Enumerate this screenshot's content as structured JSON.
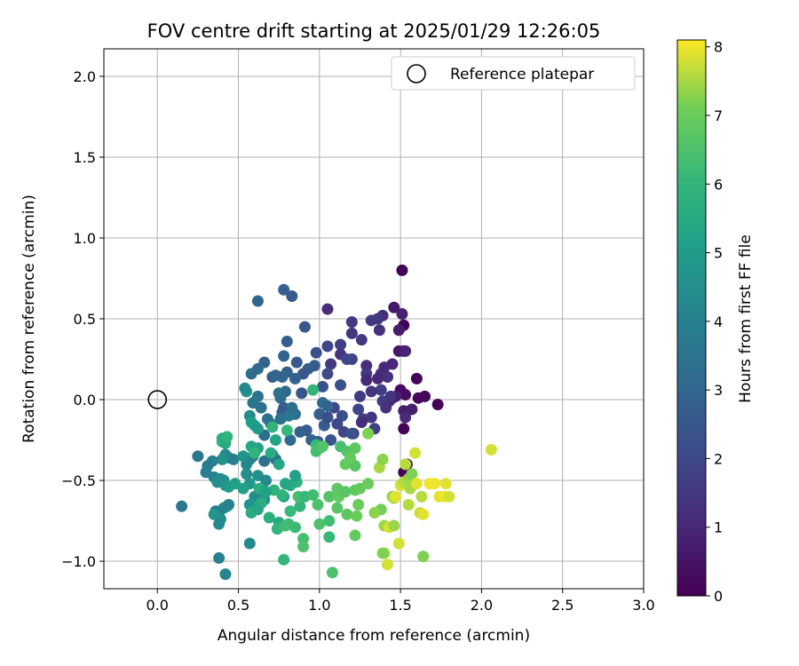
{
  "chart_data": {
    "type": "scatter",
    "title": "FOV centre drift starting at 2025/01/29 12:26:05",
    "xlabel": "Angular distance from reference (arcmin)",
    "ylabel": "Rotation from reference (arcmin)",
    "colorbar_label": "Hours from first FF file",
    "xlim": [
      -0.33,
      3.0
    ],
    "ylim": [
      -1.17,
      2.17
    ],
    "xticks": [
      0.0,
      0.5,
      1.0,
      1.5,
      2.0,
      2.5,
      3.0
    ],
    "xtick_labels": [
      "0.0",
      "0.5",
      "1.0",
      "1.5",
      "2.0",
      "2.5",
      "3.0"
    ],
    "yticks": [
      -1.0,
      -0.5,
      0.0,
      0.5,
      1.0,
      1.5,
      2.0
    ],
    "ytick_labels": [
      "−1.0",
      "−0.5",
      "0.0",
      "0.5",
      "1.0",
      "1.5",
      "2.0"
    ],
    "colorbar_range": [
      0,
      8.1
    ],
    "colorbar_ticks": [
      0,
      1,
      2,
      3,
      4,
      5,
      6,
      7,
      8
    ],
    "colorbar_tick_labels": [
      "0",
      "1",
      "2",
      "3",
      "4",
      "5",
      "6",
      "7",
      "8"
    ],
    "colormap": "viridis",
    "grid": true,
    "legend": {
      "position": "upper-right",
      "entries": [
        {
          "label": "Reference platepar",
          "marker": "open-circle"
        }
      ]
    },
    "reference_point": {
      "x": 0.0,
      "y": 0.0
    },
    "points": [
      [
        1.51,
        0.8,
        0.05
      ],
      [
        1.52,
        0.46,
        0.1
      ],
      [
        1.52,
        0.3,
        0.2
      ],
      [
        1.52,
        -0.18,
        0.05
      ],
      [
        1.6,
        0.13,
        0.1
      ],
      [
        1.61,
        0.01,
        0.15
      ],
      [
        1.65,
        0.02,
        0.2
      ],
      [
        1.73,
        -0.03,
        0.1
      ],
      [
        1.5,
        0.06,
        0.3
      ],
      [
        1.53,
        0.03,
        0.35
      ],
      [
        1.54,
        -0.4,
        0.5
      ],
      [
        1.52,
        -0.45,
        0.1
      ],
      [
        1.46,
        0.57,
        0.6
      ],
      [
        1.51,
        0.53,
        0.8
      ],
      [
        1.49,
        0.43,
        0.7
      ],
      [
        1.49,
        0.3,
        0.6
      ],
      [
        1.53,
        0.3,
        0.9
      ],
      [
        1.45,
        0.22,
        1.0
      ],
      [
        1.4,
        0.2,
        1.1
      ],
      [
        1.38,
        0.16,
        1.2
      ],
      [
        1.36,
        0.13,
        1.0
      ],
      [
        1.42,
        0.14,
        1.3
      ],
      [
        1.47,
        0.02,
        0.8
      ],
      [
        1.45,
        0.01,
        0.6
      ],
      [
        1.43,
        -0.01,
        0.9
      ],
      [
        1.52,
        -0.07,
        0.7
      ],
      [
        1.57,
        -0.06,
        0.8
      ],
      [
        1.53,
        -0.11,
        1.1
      ],
      [
        1.39,
        0.52,
        1.2
      ],
      [
        1.36,
        0.5,
        1.4
      ],
      [
        1.32,
        0.49,
        1.5
      ],
      [
        1.37,
        0.43,
        1.3
      ],
      [
        1.2,
        0.48,
        1.6
      ],
      [
        1.2,
        0.41,
        1.4
      ],
      [
        1.26,
        0.37,
        1.5
      ],
      [
        1.05,
        0.56,
        1.2
      ],
      [
        1.13,
        0.34,
        1.7
      ],
      [
        1.13,
        0.28,
        1.4
      ],
      [
        1.2,
        0.25,
        1.8
      ],
      [
        1.05,
        0.33,
        1.9
      ],
      [
        1.07,
        0.22,
        1.6
      ],
      [
        1.29,
        0.21,
        1.2
      ],
      [
        1.29,
        0.16,
        1.5
      ],
      [
        1.29,
        0.12,
        1.1
      ],
      [
        1.38,
        0.06,
        1.7
      ],
      [
        1.32,
        0.05,
        1.4
      ],
      [
        1.39,
        -0.01,
        1.6
      ],
      [
        1.44,
        0.02,
        1.4
      ],
      [
        1.41,
        -0.05,
        1.3
      ],
      [
        1.25,
        0.02,
        1.6
      ],
      [
        1.24,
        -0.06,
        1.9
      ],
      [
        1.27,
        -0.12,
        1.7
      ],
      [
        1.32,
        -0.11,
        1.5
      ],
      [
        1.34,
        -0.18,
        1.8
      ],
      [
        1.26,
        -0.14,
        1.2
      ],
      [
        1.14,
        -0.1,
        2.2
      ],
      [
        1.21,
        -0.21,
        1.6
      ],
      [
        1.09,
        -0.05,
        2.0
      ],
      [
        1.02,
        0.08,
        2.4
      ],
      [
        1.05,
        0.16,
        2.1
      ],
      [
        1.13,
        0.09,
        2.3
      ],
      [
        1.17,
        0.25,
        2.0
      ],
      [
        0.97,
        0.21,
        2.6
      ],
      [
        0.98,
        0.29,
        2.3
      ],
      [
        0.93,
        0.19,
        2.7
      ],
      [
        0.9,
        0.16,
        2.5
      ],
      [
        0.91,
        0.45,
        2.5
      ],
      [
        0.86,
        0.23,
        2.6
      ],
      [
        0.83,
        0.64,
        2.6
      ],
      [
        0.78,
        0.68,
        2.8
      ],
      [
        0.8,
        0.36,
        2.7
      ],
      [
        0.78,
        0.27,
        2.9
      ],
      [
        0.8,
        0.17,
        2.8
      ],
      [
        0.77,
        0.14,
        3.0
      ],
      [
        0.71,
        0.14,
        2.7
      ],
      [
        0.66,
        0.23,
        2.8
      ],
      [
        0.62,
        0.61,
        3.0
      ],
      [
        0.62,
        0.19,
        3.1
      ],
      [
        0.58,
        0.16,
        3.2
      ],
      [
        0.73,
        0.15,
        2.9
      ],
      [
        0.85,
        0.13,
        2.8
      ],
      [
        0.89,
        0.04,
        2.4
      ],
      [
        0.79,
        0.05,
        3.1
      ],
      [
        0.75,
        0.04,
        3.4
      ],
      [
        0.76,
        0.01,
        3.3
      ],
      [
        0.62,
        0.02,
        3.4
      ],
      [
        0.59,
        -0.02,
        3.6
      ],
      [
        0.64,
        -0.05,
        3.4
      ],
      [
        0.78,
        -0.05,
        2.9
      ],
      [
        0.77,
        -0.08,
        2.6
      ],
      [
        0.83,
        -0.05,
        3.2
      ],
      [
        0.85,
        -0.09,
        3.3
      ],
      [
        0.81,
        -0.1,
        3.6
      ],
      [
        0.76,
        -0.12,
        3.4
      ],
      [
        1.02,
        -0.02,
        3.1
      ],
      [
        1.05,
        -0.04,
        2.9
      ],
      [
        1.0,
        -0.09,
        2.7
      ],
      [
        1.03,
        -0.16,
        2.6
      ],
      [
        1.05,
        -0.11,
        2.2
      ],
      [
        1.11,
        -0.15,
        2.0
      ],
      [
        1.15,
        -0.2,
        1.9
      ],
      [
        1.2,
        -0.21,
        2.3
      ],
      [
        0.92,
        -0.19,
        2.6
      ],
      [
        0.88,
        -0.2,
        2.8
      ],
      [
        0.95,
        -0.25,
        2.9
      ],
      [
        0.99,
        -0.26,
        2.7
      ],
      [
        1.07,
        -0.25,
        2.4
      ],
      [
        0.82,
        -0.25,
        3.1
      ],
      [
        0.7,
        -0.15,
        3.3
      ],
      [
        0.68,
        -0.12,
        3.5
      ],
      [
        0.66,
        -0.22,
        3.3
      ],
      [
        0.71,
        -0.34,
        3.5
      ],
      [
        0.73,
        -0.37,
        3.4
      ],
      [
        0.66,
        -0.38,
        3.3
      ],
      [
        0.59,
        -0.35,
        3.7
      ],
      [
        0.57,
        -0.37,
        4.0
      ],
      [
        0.55,
        -0.4,
        4.2
      ],
      [
        0.47,
        -0.37,
        4.1
      ],
      [
        0.44,
        -0.36,
        3.8
      ],
      [
        0.55,
        0.05,
        4.7
      ],
      [
        0.54,
        0.07,
        4.3
      ],
      [
        0.57,
        -0.1,
        4.5
      ],
      [
        0.6,
        -0.16,
        5.3
      ],
      [
        0.58,
        -0.14,
        5.1
      ],
      [
        0.62,
        -0.18,
        4.9
      ],
      [
        0.73,
        -0.25,
        5.3
      ],
      [
        0.7,
        -0.33,
        5.6
      ],
      [
        0.75,
        -0.4,
        5.4
      ],
      [
        0.62,
        -0.3,
        5.2
      ],
      [
        0.58,
        -0.29,
        5.4
      ],
      [
        0.6,
        -0.33,
        5.9
      ],
      [
        0.53,
        -0.35,
        4.7
      ],
      [
        0.55,
        -0.46,
        4.5
      ],
      [
        0.57,
        -0.52,
        4.8
      ],
      [
        0.62,
        -0.47,
        4.6
      ],
      [
        0.67,
        -0.5,
        4.3
      ],
      [
        0.66,
        -0.62,
        4.7
      ],
      [
        0.64,
        -0.6,
        5.0
      ],
      [
        0.6,
        -0.6,
        4.4
      ],
      [
        0.57,
        -0.65,
        4.8
      ],
      [
        0.53,
        -0.55,
        5.2
      ],
      [
        0.42,
        -0.34,
        4.2
      ],
      [
        0.4,
        -0.37,
        4.6
      ],
      [
        0.34,
        -0.38,
        4.0
      ],
      [
        0.31,
        -0.41,
        3.8
      ],
      [
        0.25,
        -0.35,
        3.6
      ],
      [
        0.3,
        -0.45,
        3.9
      ],
      [
        0.35,
        -0.48,
        4.1
      ],
      [
        0.39,
        -0.49,
        4.3
      ],
      [
        0.37,
        -0.51,
        4.5
      ],
      [
        0.41,
        -0.5,
        4.4
      ],
      [
        0.42,
        -0.53,
        4.7
      ],
      [
        0.44,
        -0.54,
        4.9
      ],
      [
        0.48,
        -0.52,
        5.1
      ],
      [
        0.4,
        -0.24,
        5.6
      ],
      [
        0.4,
        -0.26,
        5.8
      ],
      [
        0.42,
        -0.27,
        5.5
      ],
      [
        0.43,
        -0.23,
        5.9
      ],
      [
        0.43,
        -0.66,
        4.6
      ],
      [
        0.41,
        -0.67,
        4.3
      ],
      [
        0.44,
        -0.65,
        4.0
      ],
      [
        0.38,
        -0.7,
        4.1
      ],
      [
        0.36,
        -0.69,
        3.9
      ],
      [
        0.39,
        -0.74,
        4.5
      ],
      [
        0.38,
        -0.77,
        4.3
      ],
      [
        0.35,
        -0.71,
        4.7
      ],
      [
        0.15,
        -0.66,
        3.7
      ],
      [
        0.38,
        -0.98,
        4.0
      ],
      [
        0.42,
        -1.08,
        4.2
      ],
      [
        0.57,
        -0.89,
        4.4
      ],
      [
        0.63,
        -0.55,
        5.6
      ],
      [
        0.72,
        -0.56,
        5.9
      ],
      [
        0.67,
        -0.57,
        5.2
      ],
      [
        0.64,
        -0.64,
        5.7
      ],
      [
        0.58,
        -0.7,
        5.6
      ],
      [
        0.62,
        -0.68,
        5.4
      ],
      [
        0.69,
        -0.73,
        5.7
      ],
      [
        0.75,
        -0.76,
        5.5
      ],
      [
        0.78,
        -0.6,
        5.3
      ],
      [
        0.86,
        -0.51,
        5.8
      ],
      [
        0.82,
        -0.53,
        5.6
      ],
      [
        0.77,
        -0.59,
        5.9
      ],
      [
        0.85,
        -0.47,
        5.2
      ],
      [
        0.79,
        -0.52,
        5.4
      ],
      [
        0.74,
        -0.8,
        6.0
      ],
      [
        0.81,
        -0.77,
        6.2
      ],
      [
        0.82,
        -0.69,
        6.1
      ],
      [
        0.88,
        -0.66,
        6.0
      ],
      [
        0.85,
        -0.79,
        6.2
      ],
      [
        0.9,
        -0.86,
        6.4
      ],
      [
        0.9,
        -0.91,
        6.5
      ],
      [
        0.78,
        -0.99,
        6.0
      ],
      [
        0.79,
        -0.78,
        6.3
      ],
      [
        0.87,
        -0.6,
        6.4
      ],
      [
        0.91,
        -0.6,
        6.1
      ],
      [
        0.96,
        -0.59,
        6.3
      ],
      [
        0.99,
        -0.65,
        6.5
      ],
      [
        1.0,
        -0.77,
        6.5
      ],
      [
        1.06,
        -0.6,
        6.6
      ],
      [
        1.06,
        -0.75,
        6.3
      ],
      [
        1.06,
        -0.85,
        6.1
      ],
      [
        1.11,
        -0.67,
        6.7
      ],
      [
        1.12,
        -0.6,
        6.9
      ],
      [
        1.11,
        -0.55,
        6.8
      ],
      [
        1.08,
        -1.07,
        6.5
      ],
      [
        1.16,
        -0.57,
        6.7
      ],
      [
        1.17,
        -0.71,
        6.8
      ],
      [
        1.22,
        -0.56,
        6.8
      ],
      [
        1.23,
        -0.72,
        7.0
      ],
      [
        1.22,
        -0.84,
        6.9
      ],
      [
        1.24,
        -0.65,
        7.0
      ],
      [
        1.25,
        -0.55,
        6.9
      ],
      [
        1.3,
        -0.52,
        7.0
      ],
      [
        0.96,
        0.06,
        6.0
      ],
      [
        0.98,
        -0.28,
        6.1
      ],
      [
        1.0,
        -0.3,
        6.3
      ],
      [
        0.98,
        -0.32,
        6.4
      ],
      [
        1.02,
        -0.29,
        6.6
      ],
      [
        1.13,
        -0.29,
        6.4
      ],
      [
        1.17,
        -0.32,
        6.6
      ],
      [
        1.22,
        -0.3,
        6.8
      ],
      [
        1.16,
        -0.4,
        6.9
      ],
      [
        1.22,
        -0.41,
        6.7
      ],
      [
        1.19,
        -0.36,
        6.9
      ],
      [
        1.3,
        -0.21,
        7.2
      ],
      [
        0.8,
        -0.19,
        6.1
      ],
      [
        0.71,
        -0.17,
        6.0
      ],
      [
        1.37,
        -0.42,
        7.5
      ],
      [
        1.39,
        -0.37,
        7.3
      ],
      [
        1.38,
        -0.68,
        7.1
      ],
      [
        1.34,
        -0.7,
        7.3
      ],
      [
        1.4,
        -0.78,
        7.4
      ],
      [
        1.43,
        -0.79,
        7.8
      ],
      [
        1.46,
        -0.78,
        7.4
      ],
      [
        1.45,
        -0.6,
        7.3
      ],
      [
        1.46,
        -0.61,
        7.5
      ],
      [
        1.47,
        -0.6,
        7.9
      ],
      [
        1.4,
        -0.95,
        7.5
      ],
      [
        1.42,
        -1.02,
        7.8
      ],
      [
        1.39,
        -0.95,
        7.2
      ],
      [
        1.49,
        -0.89,
        7.8
      ],
      [
        1.5,
        -0.53,
        7.8
      ],
      [
        1.52,
        -0.51,
        7.6
      ],
      [
        1.55,
        -0.49,
        7.4
      ],
      [
        1.57,
        -0.46,
        7.2
      ],
      [
        1.55,
        -0.65,
        7.6
      ],
      [
        1.56,
        -0.55,
        7.5
      ],
      [
        1.59,
        -0.33,
        7.8
      ],
      [
        1.6,
        -0.52,
        7.9
      ],
      [
        1.62,
        -0.7,
        7.7
      ],
      [
        1.63,
        -0.6,
        7.6
      ],
      [
        1.64,
        -0.71,
        7.9
      ],
      [
        1.64,
        -0.97,
        7.2
      ],
      [
        1.68,
        -0.52,
        8.0
      ],
      [
        1.71,
        -0.52,
        8.0
      ],
      [
        1.74,
        -0.6,
        7.9
      ],
      [
        1.77,
        -0.6,
        8.0
      ],
      [
        1.78,
        -0.52,
        7.9
      ],
      [
        1.8,
        -0.6,
        7.8
      ],
      [
        2.06,
        -0.31,
        7.8
      ],
      [
        1.53,
        -0.4,
        7.6
      ]
    ]
  }
}
